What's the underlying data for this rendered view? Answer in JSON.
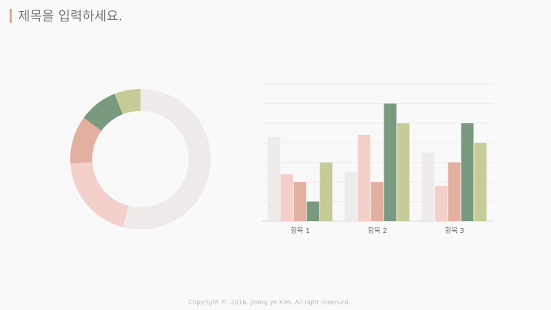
{
  "header": {
    "title": "제목을 입력하세요."
  },
  "chart_data": [
    {
      "type": "pie",
      "donut": true,
      "values": [
        54,
        20,
        11,
        9,
        6
      ],
      "colors": [
        "#efebea",
        "#f4d0cb",
        "#e2b0a0",
        "#7a9a80",
        "#c7cb98"
      ]
    },
    {
      "type": "bar",
      "categories": [
        "항목 1",
        "항목 2",
        "항목 3"
      ],
      "series": [
        {
          "color": "#efebea",
          "values": [
            4.3,
            2.5,
            3.5
          ]
        },
        {
          "color": "#f4d0cb",
          "values": [
            2.4,
            4.4,
            1.8
          ]
        },
        {
          "color": "#e2b0a0",
          "values": [
            2.0,
            2.0,
            3.0
          ]
        },
        {
          "color": "#7a9a80",
          "values": [
            1.0,
            6.0,
            5.0
          ]
        },
        {
          "color": "#c7cb98",
          "values": [
            3.0,
            5.0,
            4.0
          ]
        }
      ],
      "ylim": [
        0,
        7
      ],
      "yticks": [
        0,
        1,
        2,
        3,
        4,
        5,
        6,
        7
      ],
      "grid": true
    }
  ],
  "footer": {
    "text": "Copyright ©. 2016. Jeong ye Kim. All right reserved."
  }
}
